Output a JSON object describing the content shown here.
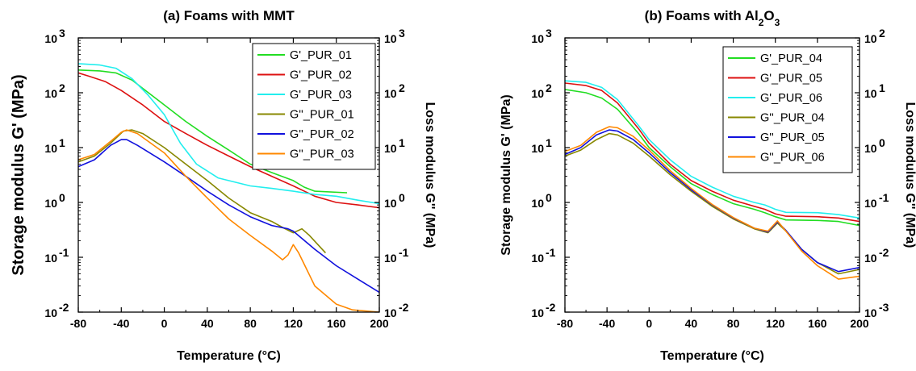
{
  "chart_data": [
    {
      "type": "line",
      "title": "(a) Foams with MMT",
      "xlabel": "Temperature (°C)",
      "ylabel": "Storage modulus G' (MPa)",
      "ylabel_right": "Loss modulus G'' (MPa)",
      "xlim": [
        -80,
        200
      ],
      "xticks": [
        "-80",
        "-40",
        "0",
        "40",
        "80",
        "120",
        "160",
        "200"
      ],
      "ylim": [
        0.01,
        1000
      ],
      "yscale": "log",
      "yticks_left": [
        "10",
        "10",
        "10",
        "10",
        "10",
        "10"
      ],
      "yticks_left_exp": [
        "-2",
        "-1",
        "0",
        "1",
        "2",
        "3"
      ],
      "ylim_right": [
        0.01,
        1000
      ],
      "yticks_right": [
        "10",
        "10",
        "10",
        "10",
        "10",
        "10"
      ],
      "yticks_right_exp": [
        "-2",
        "-1",
        "0",
        "1",
        "2",
        "3"
      ],
      "legend_position": "top-right",
      "series": [
        {
          "name": "G'_PUR_01",
          "color": "#22dd22",
          "axis": "left",
          "points": [
            [
              -80,
              260
            ],
            [
              -60,
              250
            ],
            [
              -45,
              230
            ],
            [
              -30,
              170
            ],
            [
              -20,
              120
            ],
            [
              0,
              60
            ],
            [
              20,
              30
            ],
            [
              40,
              16
            ],
            [
              60,
              9
            ],
            [
              80,
              5
            ],
            [
              100,
              3.5
            ],
            [
              120,
              2.5
            ],
            [
              130,
              1.9
            ],
            [
              140,
              1.6
            ],
            [
              170,
              1.5
            ]
          ]
        },
        {
          "name": "G'_PUR_02",
          "color": "#dd1111",
          "axis": "left",
          "points": [
            [
              -80,
              230
            ],
            [
              -70,
              200
            ],
            [
              -55,
              160
            ],
            [
              -40,
              110
            ],
            [
              -20,
              60
            ],
            [
              0,
              30
            ],
            [
              20,
              18
            ],
            [
              40,
              11
            ],
            [
              60,
              7
            ],
            [
              80,
              4.5
            ],
            [
              100,
              3
            ],
            [
              120,
              2
            ],
            [
              140,
              1.3
            ],
            [
              160,
              1
            ],
            [
              180,
              0.9
            ],
            [
              200,
              0.8
            ]
          ]
        },
        {
          "name": "G'_PUR_03",
          "color": "#22eeee",
          "axis": "left",
          "points": [
            [
              -80,
              340
            ],
            [
              -60,
              320
            ],
            [
              -45,
              280
            ],
            [
              -30,
              180
            ],
            [
              -15,
              90
            ],
            [
              0,
              40
            ],
            [
              15,
              12
            ],
            [
              30,
              5
            ],
            [
              50,
              2.8
            ],
            [
              80,
              2
            ],
            [
              100,
              1.8
            ],
            [
              120,
              1.6
            ],
            [
              140,
              1.4
            ],
            [
              160,
              1.3
            ],
            [
              180,
              1.1
            ],
            [
              200,
              0.95
            ]
          ]
        },
        {
          "name": "G''_PUR_01",
          "color": "#888800",
          "axis": "right",
          "points": [
            [
              -80,
              5.5
            ],
            [
              -65,
              7
            ],
            [
              -50,
              12
            ],
            [
              -38,
              20
            ],
            [
              -30,
              21
            ],
            [
              -20,
              18
            ],
            [
              0,
              10
            ],
            [
              20,
              5
            ],
            [
              40,
              2.5
            ],
            [
              60,
              1.2
            ],
            [
              80,
              0.65
            ],
            [
              100,
              0.45
            ],
            [
              110,
              0.35
            ],
            [
              120,
              0.28
            ],
            [
              128,
              0.33
            ],
            [
              135,
              0.25
            ],
            [
              150,
              0.12
            ]
          ]
        },
        {
          "name": "G''_PUR_02",
          "color": "#1111dd",
          "axis": "right",
          "points": [
            [
              -80,
              4.5
            ],
            [
              -65,
              6
            ],
            [
              -50,
              11
            ],
            [
              -40,
              14
            ],
            [
              -35,
              14
            ],
            [
              -25,
              11
            ],
            [
              0,
              5.5
            ],
            [
              20,
              3
            ],
            [
              40,
              1.6
            ],
            [
              60,
              0.9
            ],
            [
              80,
              0.55
            ],
            [
              100,
              0.38
            ],
            [
              115,
              0.33
            ],
            [
              120,
              0.3
            ],
            [
              140,
              0.14
            ],
            [
              160,
              0.07
            ],
            [
              180,
              0.04
            ],
            [
              200,
              0.023
            ]
          ]
        },
        {
          "name": "G''_PUR_03",
          "color": "#ff8800",
          "axis": "right",
          "points": [
            [
              -80,
              6
            ],
            [
              -65,
              7.5
            ],
            [
              -50,
              13
            ],
            [
              -40,
              19
            ],
            [
              -35,
              21
            ],
            [
              -25,
              18
            ],
            [
              0,
              8
            ],
            [
              20,
              3
            ],
            [
              40,
              1.2
            ],
            [
              60,
              0.5
            ],
            [
              80,
              0.25
            ],
            [
              100,
              0.13
            ],
            [
              110,
              0.09
            ],
            [
              115,
              0.11
            ],
            [
              120,
              0.17
            ],
            [
              125,
              0.12
            ],
            [
              140,
              0.03
            ],
            [
              160,
              0.014
            ],
            [
              175,
              0.011
            ],
            [
              200,
              0.01
            ]
          ]
        }
      ]
    },
    {
      "type": "line",
      "title": "(b) Foams with Al",
      "title_sub": "2",
      "title_mid": "O",
      "title_sub2": "3",
      "xlabel": "Temperature (°C)",
      "ylabel": "Storage modulus G' (MPa)",
      "ylabel_right": "Loss modulus G'' (MPa)",
      "xlim": [
        -80,
        200
      ],
      "xticks": [
        "-80",
        "-40",
        "0",
        "40",
        "80",
        "120",
        "160",
        "200"
      ],
      "ylim": [
        0.01,
        1000
      ],
      "yscale": "log",
      "yticks_left": [
        "10",
        "10",
        "10",
        "10",
        "10",
        "10"
      ],
      "yticks_left_exp": [
        "-2",
        "-1",
        "0",
        "1",
        "2",
        "3"
      ],
      "ylim_right": [
        0.001,
        100
      ],
      "yticks_right": [
        "10",
        "10",
        "10",
        "10",
        "10",
        "10"
      ],
      "yticks_right_exp": [
        "-3",
        "-2",
        "-1",
        "0",
        "1",
        "2"
      ],
      "legend_position": "top-right",
      "series": [
        {
          "name": "G'_PUR_04",
          "color": "#22dd22",
          "axis": "left",
          "points": [
            [
              -80,
              115
            ],
            [
              -60,
              100
            ],
            [
              -45,
              80
            ],
            [
              -30,
              50
            ],
            [
              -10,
              18
            ],
            [
              0,
              10
            ],
            [
              20,
              4.5
            ],
            [
              40,
              2.2
            ],
            [
              60,
              1.4
            ],
            [
              80,
              0.95
            ],
            [
              100,
              0.75
            ],
            [
              110,
              0.65
            ],
            [
              120,
              0.55
            ],
            [
              130,
              0.48
            ],
            [
              160,
              0.47
            ],
            [
              180,
              0.45
            ],
            [
              200,
              0.38
            ]
          ]
        },
        {
          "name": "G'_PUR_05",
          "color": "#dd1111",
          "axis": "left",
          "points": [
            [
              -80,
              150
            ],
            [
              -60,
              135
            ],
            [
              -45,
              110
            ],
            [
              -30,
              65
            ],
            [
              -10,
              22
            ],
            [
              0,
              12
            ],
            [
              20,
              5
            ],
            [
              40,
              2.5
            ],
            [
              60,
              1.6
            ],
            [
              80,
              1.1
            ],
            [
              100,
              0.85
            ],
            [
              110,
              0.75
            ],
            [
              120,
              0.62
            ],
            [
              130,
              0.56
            ],
            [
              160,
              0.55
            ],
            [
              180,
              0.52
            ],
            [
              200,
              0.45
            ]
          ]
        },
        {
          "name": "G'_PUR_06",
          "color": "#22eeee",
          "axis": "left",
          "points": [
            [
              -80,
              165
            ],
            [
              -60,
              155
            ],
            [
              -45,
              125
            ],
            [
              -30,
              75
            ],
            [
              -10,
              25
            ],
            [
              0,
              14
            ],
            [
              20,
              6
            ],
            [
              40,
              3
            ],
            [
              60,
              1.9
            ],
            [
              80,
              1.3
            ],
            [
              100,
              1
            ],
            [
              110,
              0.9
            ],
            [
              120,
              0.75
            ],
            [
              130,
              0.66
            ],
            [
              160,
              0.65
            ],
            [
              180,
              0.6
            ],
            [
              200,
              0.52
            ]
          ]
        },
        {
          "name": "G''_PUR_04",
          "color": "#888800",
          "axis": "right",
          "points": [
            [
              -80,
              0.7
            ],
            [
              -65,
              0.9
            ],
            [
              -50,
              1.4
            ],
            [
              -38,
              1.8
            ],
            [
              -30,
              1.7
            ],
            [
              -15,
              1.2
            ],
            [
              0,
              0.7
            ],
            [
              20,
              0.32
            ],
            [
              40,
              0.16
            ],
            [
              60,
              0.085
            ],
            [
              80,
              0.05
            ],
            [
              100,
              0.033
            ],
            [
              113,
              0.028
            ],
            [
              122,
              0.042
            ],
            [
              130,
              0.03
            ],
            [
              145,
              0.014
            ],
            [
              160,
              0.008
            ],
            [
              180,
              0.005
            ],
            [
              200,
              0.006
            ]
          ]
        },
        {
          "name": "G''_PUR_05",
          "color": "#1111dd",
          "axis": "right",
          "points": [
            [
              -80,
              0.75
            ],
            [
              -65,
              1
            ],
            [
              -50,
              1.7
            ],
            [
              -38,
              2.1
            ],
            [
              -30,
              2
            ],
            [
              -15,
              1.4
            ],
            [
              0,
              0.8
            ],
            [
              20,
              0.35
            ],
            [
              40,
              0.17
            ],
            [
              60,
              0.09
            ],
            [
              80,
              0.052
            ],
            [
              100,
              0.034
            ],
            [
              113,
              0.029
            ],
            [
              122,
              0.044
            ],
            [
              130,
              0.031
            ],
            [
              145,
              0.014
            ],
            [
              160,
              0.008
            ],
            [
              180,
              0.0055
            ],
            [
              200,
              0.0065
            ]
          ]
        },
        {
          "name": "G''_PUR_06",
          "color": "#ff8800",
          "axis": "right",
          "points": [
            [
              -80,
              0.85
            ],
            [
              -65,
              1.1
            ],
            [
              -50,
              1.9
            ],
            [
              -38,
              2.4
            ],
            [
              -30,
              2.3
            ],
            [
              -15,
              1.6
            ],
            [
              0,
              0.9
            ],
            [
              20,
              0.38
            ],
            [
              40,
              0.18
            ],
            [
              60,
              0.092
            ],
            [
              80,
              0.053
            ],
            [
              100,
              0.034
            ],
            [
              113,
              0.03
            ],
            [
              122,
              0.046
            ],
            [
              130,
              0.03
            ],
            [
              145,
              0.013
            ],
            [
              160,
              0.007
            ],
            [
              180,
              0.004
            ],
            [
              200,
              0.0045
            ]
          ]
        }
      ]
    }
  ]
}
